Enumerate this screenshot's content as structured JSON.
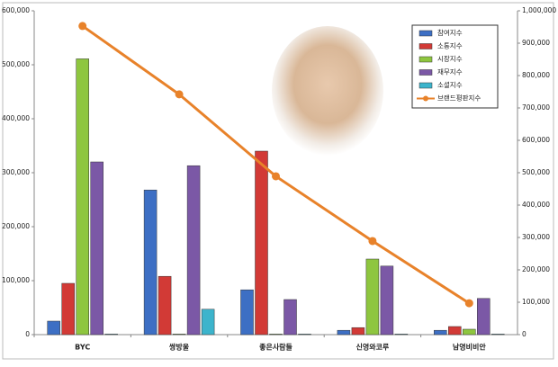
{
  "chart_data": {
    "type": "bar-line",
    "categories": [
      "BYC",
      "쌍방울",
      "좋은사람들",
      "신영와코루",
      "남영비비안"
    ],
    "series": [
      {
        "name": "참여지수",
        "color": "#3d6fc4",
        "values": [
          25000,
          268000,
          83000,
          8000,
          8000
        ]
      },
      {
        "name": "소통지수",
        "color": "#d23a36",
        "values": [
          95000,
          108000,
          340000,
          13000,
          15000
        ]
      },
      {
        "name": "시장지수",
        "color": "#8ec63f",
        "values": [
          511000,
          1000,
          1000,
          140000,
          10000
        ]
      },
      {
        "name": "재무지수",
        "color": "#7b58a6",
        "values": [
          320000,
          313000,
          65000,
          127000,
          67000
        ]
      },
      {
        "name": "소셜지수",
        "color": "#3cb4cc",
        "values": [
          1000,
          47000,
          1000,
          1000,
          1000
        ]
      },
      {
        "name": "브랜드평판지수",
        "color": "#e8822a",
        "axis": "y2",
        "type": "line",
        "values": [
          953000,
          742000,
          489000,
          289000,
          97000
        ]
      }
    ],
    "ylim": [
      0,
      600000
    ],
    "yticks": [
      0,
      {
        "value": 100000,
        "label": "100,000"
      },
      {
        "value": 200000,
        "label": "200,000"
      },
      {
        "value": 300000,
        "label": "300,000"
      },
      {
        "value": 400000,
        "label": "400,000"
      },
      {
        "value": 500000,
        "label": "500,000"
      },
      {
        "value": 600000,
        "label": "600,000"
      }
    ],
    "y2lim": [
      0,
      1000000
    ],
    "y2ticks": [
      0,
      {
        "value": 100000,
        "label": "100,000"
      },
      {
        "value": 200000,
        "label": "200,000"
      },
      {
        "value": 300000,
        "label": "300,000"
      },
      {
        "value": 400000,
        "label": "400,000"
      },
      {
        "value": 500000,
        "label": "500,000"
      },
      {
        "value": 600000,
        "label": "600,000"
      },
      {
        "value": 700000,
        "label": "700,000"
      },
      {
        "value": 800000,
        "label": "800,000"
      },
      {
        "value": 900000,
        "label": "900,000"
      },
      {
        "value": 1000000,
        "label": "1,000,000"
      }
    ],
    "legend": "top-right"
  }
}
